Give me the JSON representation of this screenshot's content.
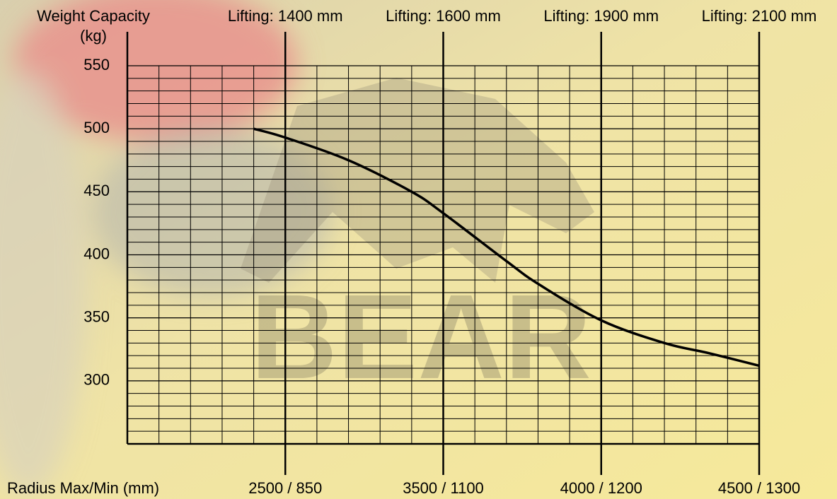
{
  "chart_data": {
    "type": "line",
    "ylabel": [
      "Weight Capacity",
      "(kg)"
    ],
    "xlabel": "Radius Max/Min (mm)",
    "watermark": "BEAR",
    "xlim": [
      0,
      20
    ],
    "ylim": [
      250,
      550
    ],
    "yticks": [
      300,
      350,
      400,
      450,
      500,
      550
    ],
    "xticks": [
      {
        "value": 5,
        "label": "2500 / 850"
      },
      {
        "value": 10,
        "label": "3500 / 1100"
      },
      {
        "value": 15,
        "label": "4000 / 1200"
      },
      {
        "value": 20,
        "label": "4500 / 1300"
      }
    ],
    "x2ticks": [
      {
        "value": 5,
        "label": "Lifting: 1400 mm"
      },
      {
        "value": 10,
        "label": "Lifting: 1600 mm"
      },
      {
        "value": 15,
        "label": "Lifting: 1900 mm"
      },
      {
        "value": 20,
        "label": "Lifting: 2100 mm"
      }
    ],
    "grid": true,
    "series": [
      {
        "color": "#000000",
        "x": [
          4,
          5,
          7,
          9,
          10,
          12,
          13,
          15,
          17,
          18.4,
          20
        ],
        "values": [
          500,
          493,
          475,
          450,
          433,
          395,
          377,
          348,
          330,
          322,
          312
        ]
      }
    ]
  }
}
